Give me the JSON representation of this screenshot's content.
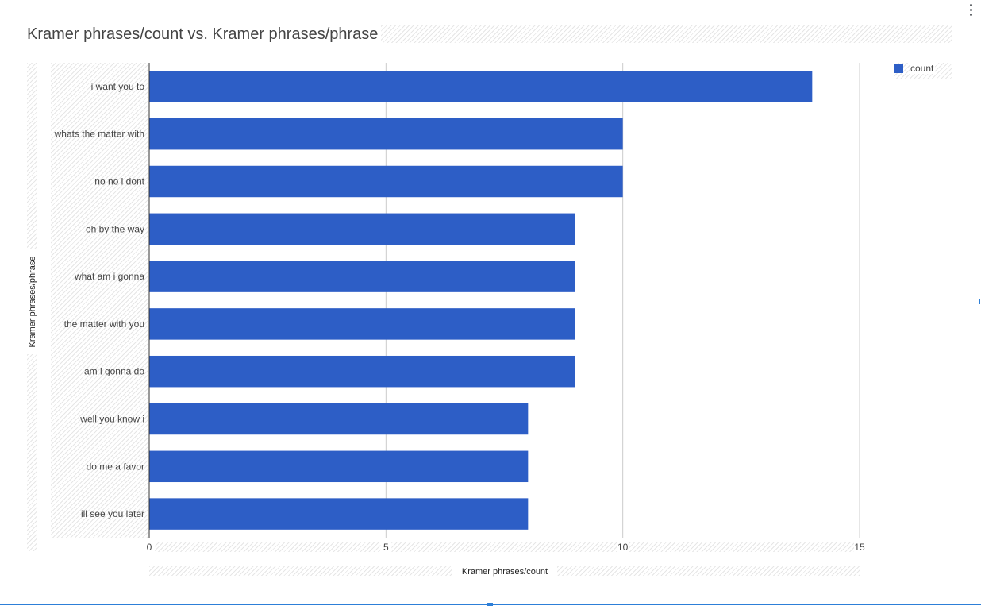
{
  "chart_data": {
    "type": "bar",
    "orientation": "horizontal",
    "title": "Kramer phrases/count vs. Kramer phrases/phrase",
    "xlabel": "Kramer phrases/count",
    "ylabel": "Kramer phrases/phrase",
    "categories": [
      "i want you to",
      "whats the matter with",
      "no no i dont",
      "oh by the way",
      "what am i gonna",
      "the matter with you",
      "am i gonna do",
      "well you know i",
      "do me a favor",
      "ill see you later"
    ],
    "series": [
      {
        "name": "count",
        "values": [
          14,
          10,
          10,
          9,
          9,
          9,
          9,
          8,
          8,
          8
        ]
      }
    ],
    "xlim": [
      0,
      15
    ],
    "xticks": [
      "0",
      "5",
      "10",
      "15"
    ],
    "grid": true,
    "legend_position": "top-right",
    "bar_color": "#2d5ec6"
  }
}
